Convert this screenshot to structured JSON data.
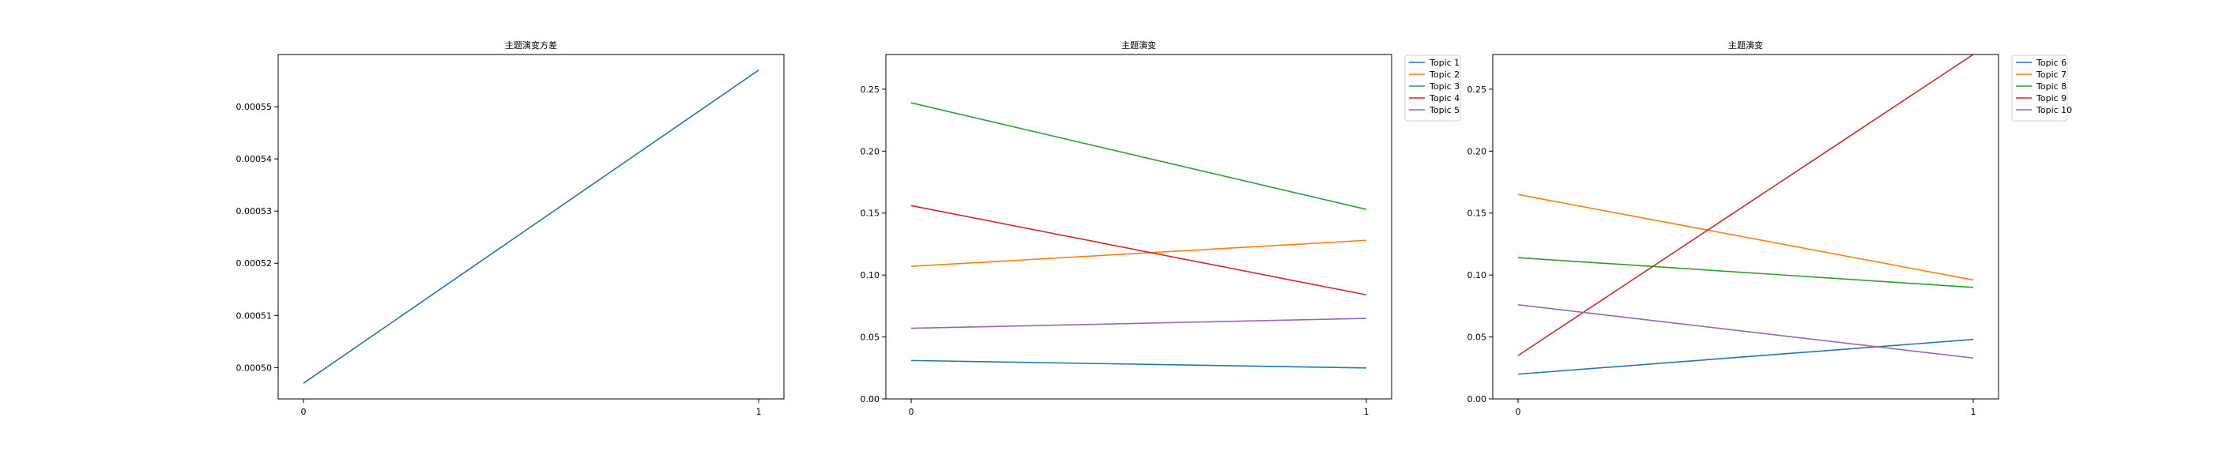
{
  "chart_data": [
    {
      "type": "line",
      "title": "主题演变方差",
      "xlabel": "",
      "ylabel": "",
      "x": [
        0,
        1
      ],
      "xticks": [
        "0",
        "1"
      ],
      "ylim": [
        0.000494,
        0.00056
      ],
      "yticks": [
        "0.00050",
        "0.00051",
        "0.00052",
        "0.00053",
        "0.00054",
        "0.00055"
      ],
      "grid": false,
      "series": [
        {
          "name": "",
          "color": "#1f77b4",
          "values": [
            0.000497,
            0.000557
          ]
        }
      ]
    },
    {
      "type": "line",
      "title": "主题演变",
      "xlabel": "",
      "ylabel": "",
      "x": [
        0,
        1
      ],
      "xticks": [
        "0",
        "1"
      ],
      "ylim": [
        0.0,
        0.278
      ],
      "yticks": [
        "0.00",
        "0.05",
        "0.10",
        "0.15",
        "0.20",
        "0.25"
      ],
      "grid": false,
      "legend": "outside-top-right",
      "series": [
        {
          "name": "Topic 1",
          "color": "#1f77b4",
          "values": [
            0.031,
            0.025
          ]
        },
        {
          "name": "Topic 2",
          "color": "#ff7f0e",
          "values": [
            0.107,
            0.128
          ]
        },
        {
          "name": "Topic 3",
          "color": "#2ca02c",
          "values": [
            0.239,
            0.153
          ]
        },
        {
          "name": "Topic 4",
          "color": "#d62728",
          "values": [
            0.156,
            0.084
          ]
        },
        {
          "name": "Topic 5",
          "color": "#9467bd",
          "values": [
            0.057,
            0.065
          ]
        }
      ]
    },
    {
      "type": "line",
      "title": "主题演变",
      "xlabel": "",
      "ylabel": "",
      "x": [
        0,
        1
      ],
      "xticks": [
        "0",
        "1"
      ],
      "ylim": [
        0.0,
        0.278
      ],
      "yticks": [
        "0.00",
        "0.05",
        "0.10",
        "0.15",
        "0.20",
        "0.25"
      ],
      "grid": false,
      "legend": "outside-top-right",
      "series": [
        {
          "name": "Topic 6",
          "color": "#1f77b4",
          "values": [
            0.02,
            0.048
          ]
        },
        {
          "name": "Topic 7",
          "color": "#ff7f0e",
          "values": [
            0.165,
            0.096
          ]
        },
        {
          "name": "Topic 8",
          "color": "#2ca02c",
          "values": [
            0.114,
            0.09
          ]
        },
        {
          "name": "Topic 9",
          "color": "#d62728",
          "values": [
            0.035,
            0.278
          ]
        },
        {
          "name": "Topic 10",
          "color": "#9467bd",
          "values": [
            0.076,
            0.033
          ]
        }
      ]
    }
  ]
}
